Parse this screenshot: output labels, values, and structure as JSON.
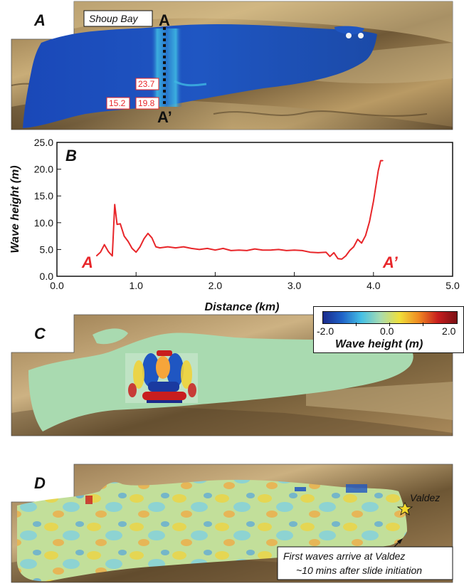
{
  "panels": {
    "a": {
      "letter": "A",
      "place_label": "Shoup Bay",
      "section_start": "A",
      "section_end": "A’",
      "markers": [
        "23.7",
        "15.2",
        "19.8"
      ]
    },
    "b": {
      "letter": "B"
    },
    "c": {
      "letter": "C"
    },
    "d": {
      "letter": "D",
      "place_label": "Valdez",
      "note_line1": "First waves arrive at Valdez",
      "note_line2": "~10 mins after  slide initiation"
    }
  },
  "colorbar": {
    "min_label": "-2.0",
    "mid_label": "0.0",
    "max_label": "2.0",
    "title": "Wave height (m)",
    "colors": [
      "#1a2a8c",
      "#1f63c8",
      "#45c0e6",
      "#a8dcb0",
      "#f0e03a",
      "#f08a22",
      "#c81e1e",
      "#7a0f14"
    ]
  },
  "chart_data": {
    "type": "line",
    "xlabel": "Distance (km)",
    "ylabel": "Wave height (m)",
    "xlim": [
      0.0,
      5.0
    ],
    "ylim": [
      0.0,
      25.0
    ],
    "xticks": [
      "0.0",
      "1.0",
      "2.0",
      "3.0",
      "4.0",
      "5.0"
    ],
    "yticks": [
      "0.0",
      "5.0",
      "10.0",
      "15.0",
      "20.0",
      "25.0"
    ],
    "start_label": "A",
    "end_label": "A’",
    "line_color": "#e8262a",
    "grid": false,
    "series": [
      {
        "x": [
          0.5,
          0.55,
          0.6,
          0.65,
          0.7,
          0.73,
          0.76,
          0.8,
          0.85,
          0.9,
          0.95,
          1.0,
          1.05,
          1.1,
          1.15,
          1.2,
          1.25,
          1.3,
          1.4,
          1.5,
          1.6,
          1.7,
          1.8,
          1.9,
          2.0,
          2.1,
          2.2,
          2.3,
          2.4,
          2.5,
          2.6,
          2.7,
          2.8,
          2.9,
          3.0,
          3.1,
          3.2,
          3.3,
          3.4,
          3.45,
          3.5,
          3.55,
          3.6,
          3.65,
          3.7,
          3.75,
          3.8,
          3.85,
          3.9,
          3.95,
          4.0,
          4.03,
          4.06,
          4.09,
          4.12
        ],
        "y": [
          3.8,
          4.5,
          5.9,
          4.6,
          3.8,
          13.4,
          9.7,
          9.8,
          7.5,
          6.5,
          5.2,
          4.5,
          5.5,
          7.0,
          8.0,
          7.2,
          5.5,
          5.3,
          5.5,
          5.3,
          5.5,
          5.2,
          5.0,
          5.2,
          4.9,
          5.2,
          4.8,
          4.9,
          4.8,
          5.1,
          4.9,
          4.9,
          5.0,
          4.8,
          4.9,
          4.8,
          4.5,
          4.4,
          4.5,
          3.7,
          4.4,
          3.3,
          3.2,
          3.8,
          4.8,
          5.5,
          6.9,
          6.2,
          7.6,
          10.2,
          14.0,
          16.8,
          19.7,
          21.6,
          21.6
        ]
      }
    ]
  }
}
